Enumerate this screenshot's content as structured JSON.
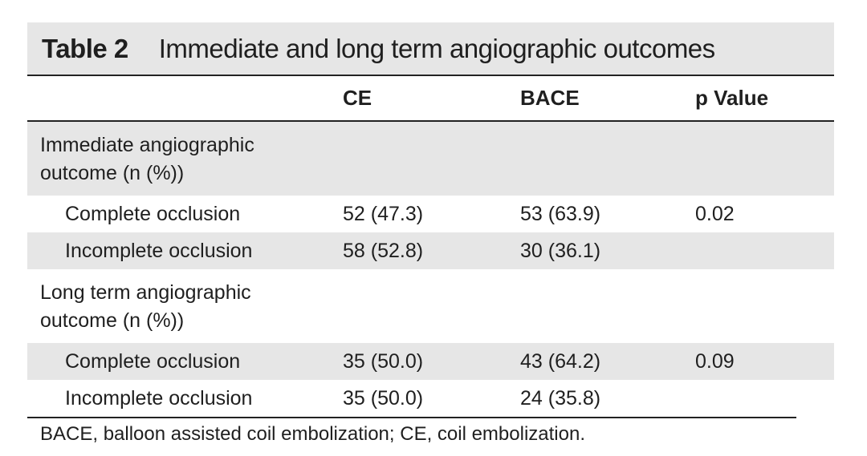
{
  "table": {
    "number": "Table 2",
    "title": "Immediate and long term angiographic outcomes",
    "headers": [
      "",
      "CE",
      "BACE",
      "p Value"
    ],
    "groups": [
      {
        "label_line1": "Immediate angiographic",
        "label_line2": "outcome (n (%))",
        "rows": [
          {
            "label": "Complete occlusion",
            "ce": "52 (47.3)",
            "bace": "53 (63.9)",
            "p": "0.02"
          },
          {
            "label": "Incomplete occlusion",
            "ce": "58 (52.8)",
            "bace": "30 (36.1)",
            "p": ""
          }
        ]
      },
      {
        "label_line1": "Long term angiographic",
        "label_line2": "outcome (n (%))",
        "rows": [
          {
            "label": "Complete occlusion",
            "ce": "35 (50.0)",
            "bace": "43 (64.2)",
            "p": "0.09"
          },
          {
            "label": "Incomplete occlusion",
            "ce": "35 (50.0)",
            "bace": "24 (35.8)",
            "p": ""
          }
        ]
      }
    ],
    "footnote": "BACE, balloon assisted coil embolization; CE, coil embolization."
  }
}
